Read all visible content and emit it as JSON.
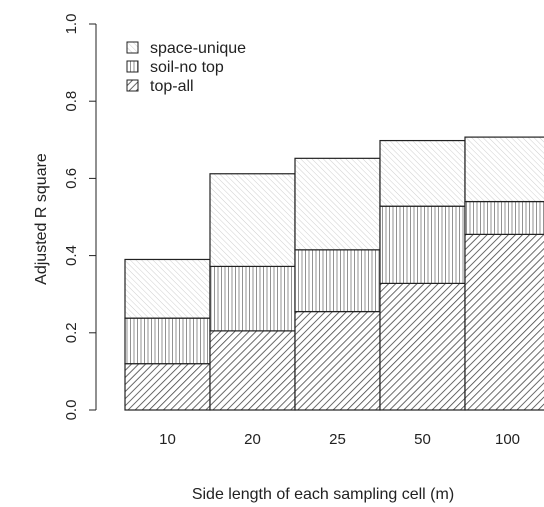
{
  "chart_data": {
    "type": "bar",
    "stacked": true,
    "categories": [
      "10",
      "20",
      "25",
      "50",
      "100"
    ],
    "series": [
      {
        "name": "top-all",
        "pattern": "dense-diagonal-hatch",
        "values": [
          0.12,
          0.205,
          0.255,
          0.328,
          0.455
        ]
      },
      {
        "name": "soil-no top",
        "pattern": "vertical-lines",
        "values": [
          0.118,
          0.167,
          0.16,
          0.2,
          0.085
        ]
      },
      {
        "name": "space-unique",
        "pattern": "light-diagonal-hatch",
        "values": [
          0.152,
          0.24,
          0.237,
          0.17,
          0.167
        ]
      }
    ],
    "totals": [
      0.39,
      0.612,
      0.652,
      0.698,
      0.707
    ],
    "xlabel": "Side length of each sampling cell (m)",
    "ylabel": "Adjusted R square",
    "ylim": [
      0.0,
      1.0
    ],
    "yticks": [
      "0.0",
      "0.2",
      "0.4",
      "0.6",
      "0.8",
      "1.0"
    ],
    "legend": {
      "placement": "top-left",
      "entries": [
        "space-unique",
        "soil-no top",
        "top-all"
      ]
    },
    "grid": false,
    "colors": {
      "edge": "#222222",
      "hatch": "#444444",
      "background": "#ffffff"
    }
  }
}
